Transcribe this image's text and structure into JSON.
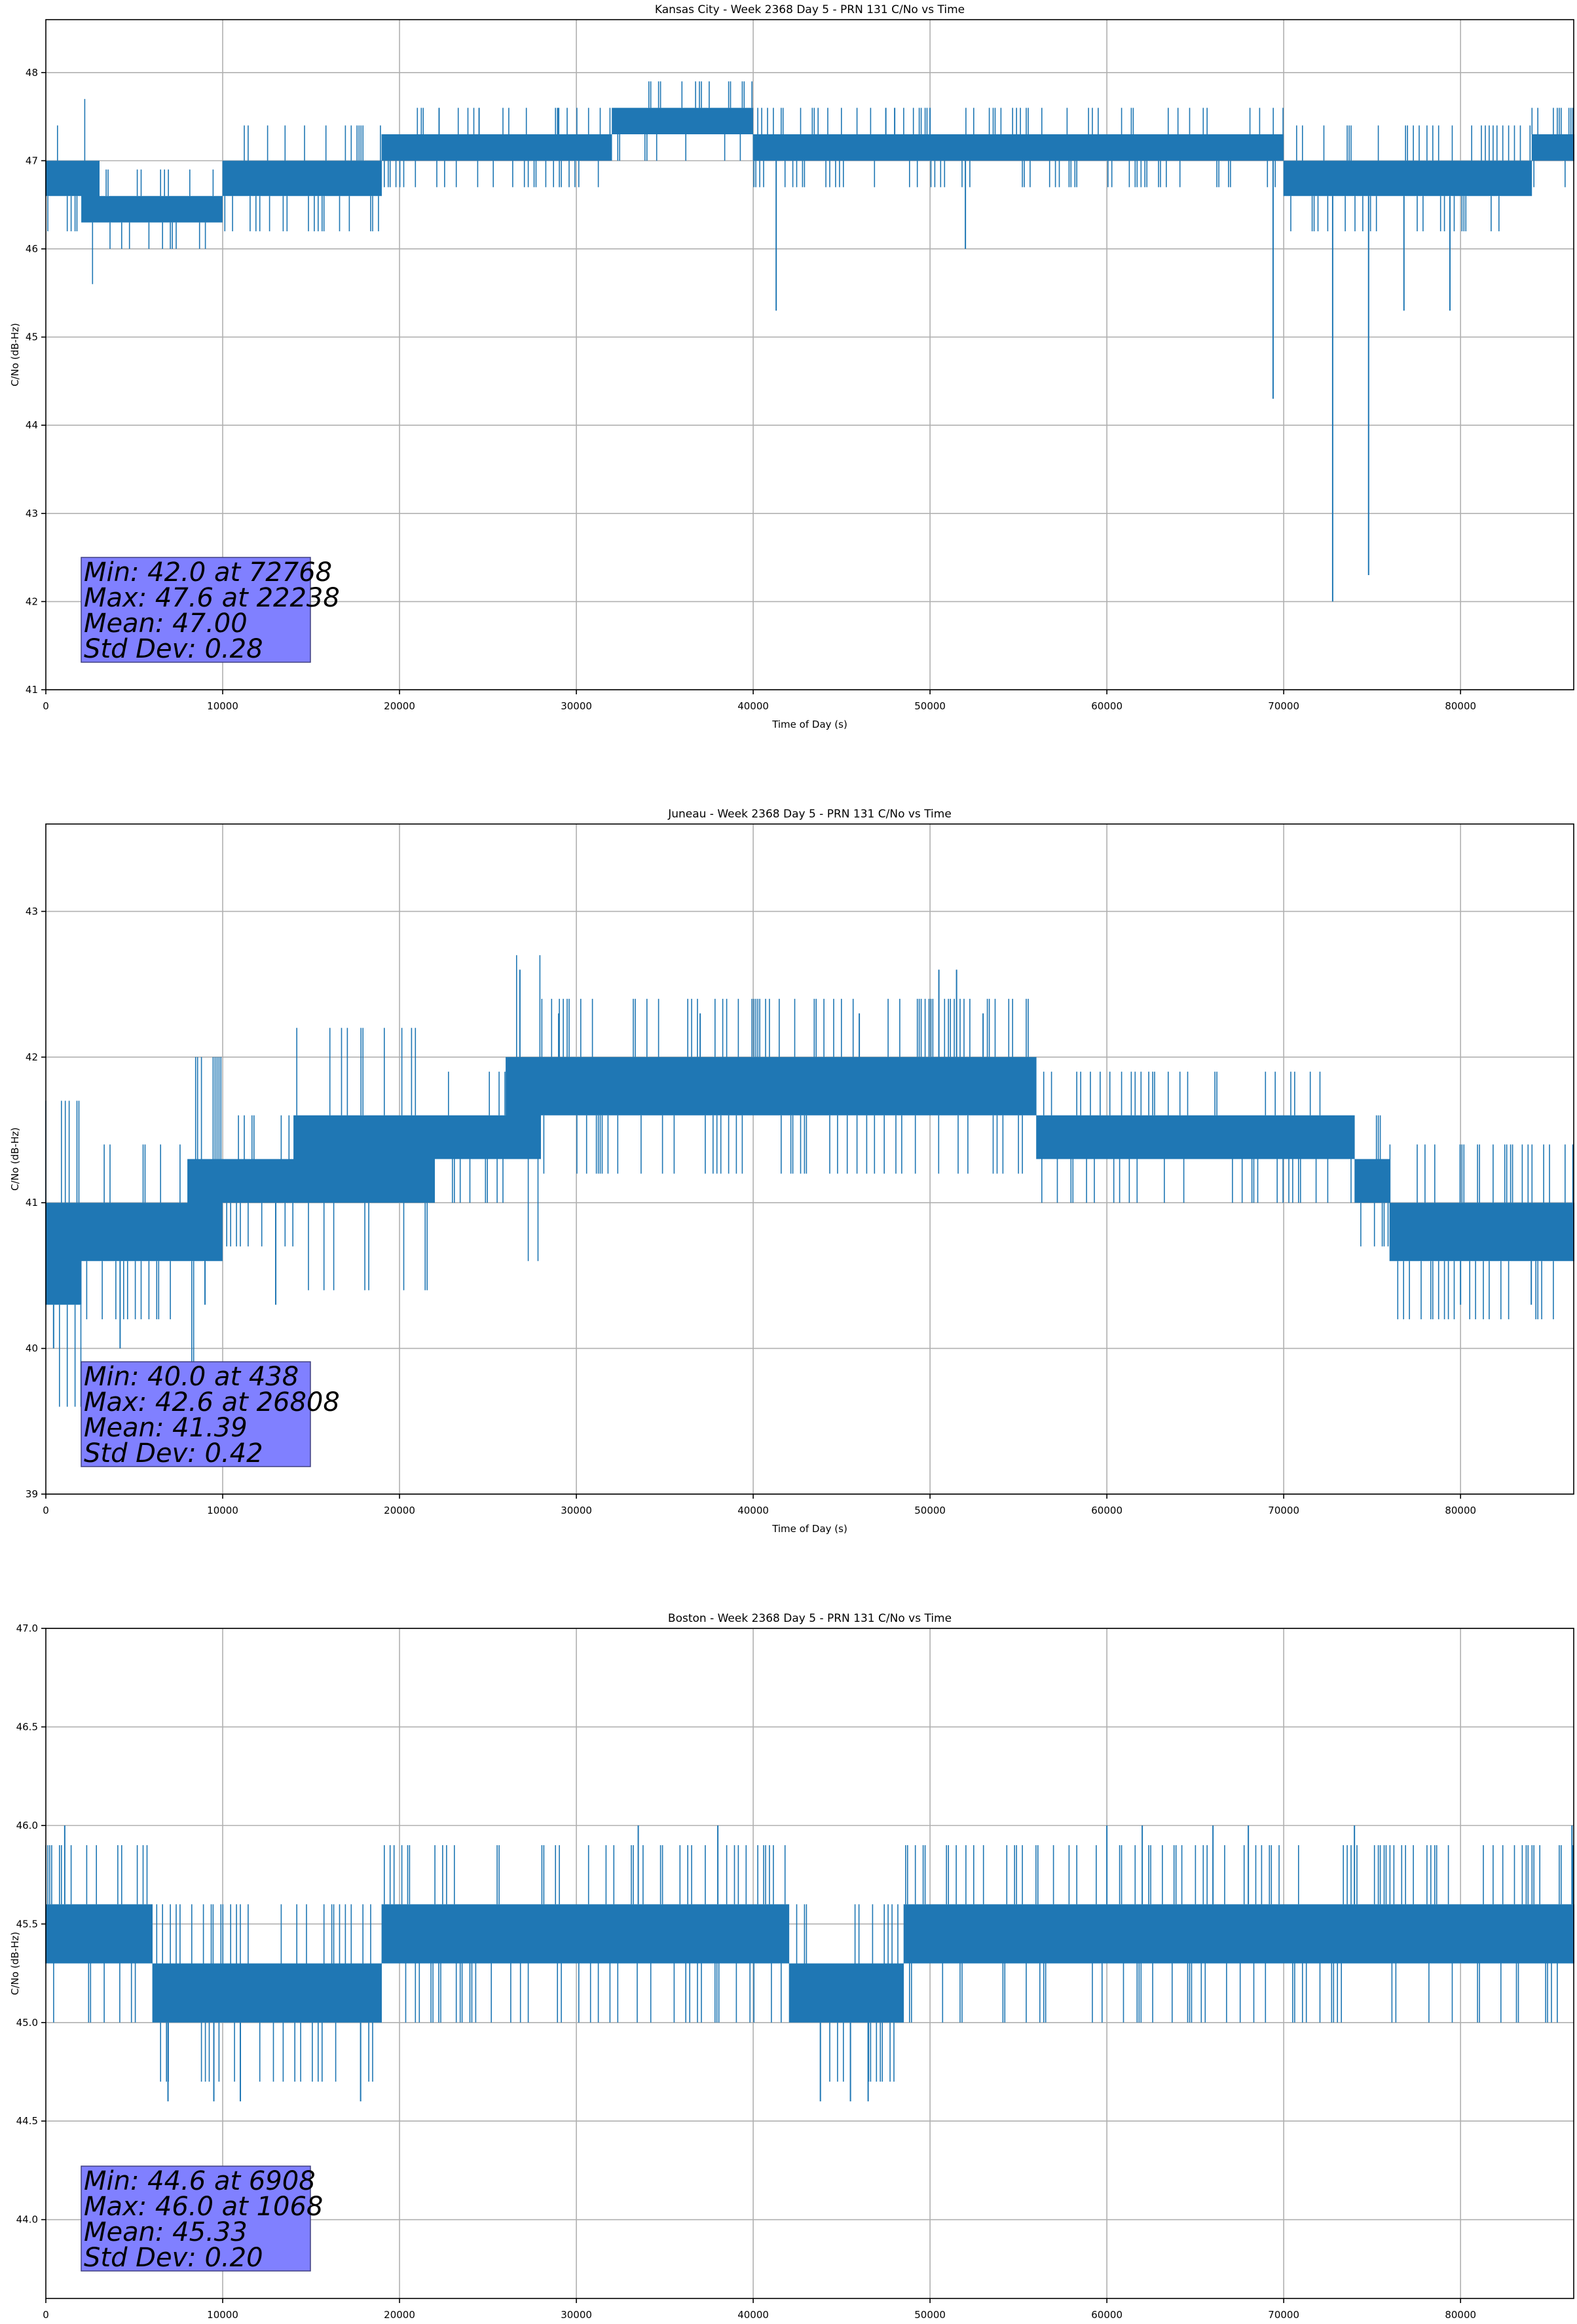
{
  "colors": {
    "series": "#1f77b4",
    "grid": "#b0b0b0",
    "stats_box": "#8080ff",
    "axes": "#000000"
  },
  "chart_data": [
    {
      "type": "line",
      "title": "Kansas City - Week 2368 Day 5 - PRN 131 C/No vs Time",
      "xlabel": "Time of Day (s)",
      "ylabel": "C/No (dB-Hz)",
      "xlim": [
        0,
        86400
      ],
      "ylim": [
        41,
        48.6
      ],
      "grid": true,
      "xticks": [
        0,
        10000,
        20000,
        30000,
        40000,
        50000,
        60000,
        70000,
        80000
      ],
      "xtick_labels": [
        "0",
        "10000",
        "20000",
        "30000",
        "40000",
        "50000",
        "60000",
        "70000",
        "80000"
      ],
      "yticks": [
        41,
        42,
        43,
        44,
        45,
        46,
        47,
        48
      ],
      "ytick_labels": [
        "41",
        "42",
        "43",
        "44",
        "45",
        "46",
        "47",
        "48"
      ],
      "series": [
        {
          "values_description": "1-second C/No samples",
          "segments": [
            {
              "x": [
                0,
                1000,
                2000,
                3000,
                4000,
                5000,
                6000,
                7000,
                8000,
                9500,
                10000,
                12000,
                14000,
                16000,
                18000,
                19000,
                20000,
                25000,
                30000,
                32000,
                36000,
                38000,
                40000,
                42000,
                44000,
                46000,
                48000,
                50000,
                52000,
                56000,
                60000,
                64000,
                68000,
                69000,
                70000,
                72000,
                76000,
                80000,
                84000,
                86400
              ],
              "low": [
                46.6,
                46.6,
                46.3,
                46.3,
                46.3,
                46.3,
                46.3,
                46.3,
                46.3,
                46.3,
                46.6,
                46.6,
                46.6,
                46.6,
                46.6,
                47.0,
                47.0,
                47.0,
                47.0,
                47.3,
                47.3,
                47.3,
                47.0,
                47.0,
                47.0,
                47.0,
                47.0,
                47.0,
                47.0,
                47.0,
                47.0,
                47.0,
                47.0,
                47.0,
                46.6,
                46.6,
                46.6,
                46.6,
                47.0,
                47.0
              ],
              "high": [
                47.0,
                47.0,
                47.0,
                46.6,
                46.6,
                46.6,
                46.6,
                46.6,
                46.6,
                46.6,
                47.0,
                47.0,
                47.0,
                47.0,
                47.0,
                47.3,
                47.3,
                47.3,
                47.3,
                47.6,
                47.6,
                47.6,
                47.3,
                47.3,
                47.3,
                47.3,
                47.3,
                47.3,
                47.3,
                47.3,
                47.3,
                47.3,
                47.3,
                47.3,
                47.0,
                47.0,
                47.0,
                47.0,
                47.3,
                47.3
              ]
            }
          ],
          "dips": [
            [
              41300,
              45.3
            ],
            [
              52000,
              46.0
            ],
            [
              69400,
              44.3
            ],
            [
              72768,
              42.0
            ],
            [
              74800,
              42.3
            ],
            [
              76800,
              45.3
            ],
            [
              79400,
              45.3
            ]
          ],
          "spikes": [
            [
              22238,
              47.6
            ],
            [
              24500,
              47.6
            ],
            [
              29000,
              47.6
            ],
            [
              47500,
              47.6
            ],
            [
              48000,
              47.6
            ],
            [
              50000,
              47.6
            ]
          ]
        }
      ],
      "stats": [
        "Min: 42.0 at 72768",
        "Max: 47.6 at 22238",
        "Mean: 47.00",
        "Std Dev: 0.28"
      ]
    },
    {
      "type": "line",
      "title": "Juneau - Week 2368 Day 5 - PRN 131 C/No vs Time",
      "xlabel": "Time of Day (s)",
      "ylabel": "C/No (dB-Hz)",
      "xlim": [
        0,
        86400
      ],
      "ylim": [
        39,
        43.6
      ],
      "grid": true,
      "xticks": [
        0,
        10000,
        20000,
        30000,
        40000,
        50000,
        60000,
        70000,
        80000
      ],
      "xtick_labels": [
        "0",
        "10000",
        "20000",
        "30000",
        "40000",
        "50000",
        "60000",
        "70000",
        "80000"
      ],
      "yticks": [
        39,
        40,
        41,
        42,
        43
      ],
      "ytick_labels": [
        "39",
        "40",
        "41",
        "42",
        "43"
      ],
      "series": [
        {
          "values_description": "1-second C/No samples",
          "segments": [
            {
              "x": [
                0,
                2000,
                4000,
                6000,
                8000,
                10000,
                12000,
                14000,
                16000,
                18000,
                20000,
                22000,
                24000,
                26000,
                28000,
                30000,
                34000,
                38000,
                42000,
                46000,
                50000,
                54000,
                56000,
                60000,
                64000,
                68000,
                72000,
                74000,
                76000,
                80000,
                84000,
                86400
              ],
              "low": [
                40.3,
                40.6,
                40.6,
                40.6,
                40.6,
                41.0,
                41.0,
                41.0,
                41.0,
                41.0,
                41.0,
                41.3,
                41.3,
                41.3,
                41.6,
                41.6,
                41.6,
                41.6,
                41.6,
                41.6,
                41.6,
                41.6,
                41.3,
                41.3,
                41.3,
                41.3,
                41.3,
                41.0,
                40.6,
                40.6,
                40.6,
                40.6
              ],
              "high": [
                41.0,
                41.0,
                41.0,
                41.0,
                41.3,
                41.3,
                41.3,
                41.6,
                41.6,
                41.6,
                41.6,
                41.6,
                41.6,
                42.0,
                42.0,
                42.0,
                42.0,
                42.0,
                42.0,
                42.0,
                42.0,
                42.0,
                41.6,
                41.6,
                41.6,
                41.6,
                41.6,
                41.3,
                41.0,
                41.0,
                41.0,
                41.0
              ]
            }
          ],
          "dips": [
            [
              438,
              40.0
            ],
            [
              4200,
              40.0
            ],
            [
              9000,
              40.3
            ],
            [
              13000,
              40.3
            ],
            [
              80000,
              40.3
            ],
            [
              84000,
              40.3
            ]
          ],
          "spikes": [
            [
              26808,
              42.6
            ],
            [
              50500,
              42.6
            ],
            [
              51500,
              42.6
            ],
            [
              29000,
              42.3
            ],
            [
              37000,
              42.3
            ],
            [
              46000,
              42.3
            ],
            [
              53000,
              42.3
            ]
          ]
        }
      ],
      "stats": [
        "Min: 40.0 at 438",
        "Max: 42.6 at 26808",
        "Mean: 41.39",
        "Std Dev: 0.42"
      ]
    },
    {
      "type": "line",
      "title": "Boston - Week 2368 Day 5 - PRN 131 C/No vs Time",
      "xlabel": "Time of Day (s)",
      "ylabel": "C/No (dB-Hz)",
      "xlim": [
        0,
        86400
      ],
      "ylim": [
        43.6,
        47.0
      ],
      "grid": true,
      "xticks": [
        0,
        10000,
        20000,
        30000,
        40000,
        50000,
        60000,
        70000,
        80000
      ],
      "xtick_labels": [
        "0",
        "10000",
        "20000",
        "30000",
        "40000",
        "50000",
        "60000",
        "70000",
        "80000"
      ],
      "yticks": [
        44.0,
        44.5,
        45.0,
        45.5,
        46.0,
        46.5,
        47.0
      ],
      "ytick_labels": [
        "44.0",
        "44.5",
        "45.0",
        "45.5",
        "46.0",
        "46.5",
        "47.0"
      ],
      "series": [
        {
          "values_description": "1-second C/No samples",
          "segments": [
            {
              "x": [
                0,
                2000,
                4000,
                5500,
                6000,
                8000,
                10000,
                12000,
                14000,
                16000,
                18000,
                19000,
                22000,
                26000,
                30000,
                34000,
                38000,
                40000,
                42000,
                44000,
                46000,
                48000,
                48500,
                52000,
                56000,
                60000,
                64000,
                68000,
                72000,
                76000,
                80000,
                84000,
                86400
              ],
              "low": [
                45.3,
                45.3,
                45.3,
                45.3,
                45.0,
                45.0,
                45.0,
                45.0,
                45.0,
                45.0,
                45.0,
                45.3,
                45.3,
                45.3,
                45.3,
                45.3,
                45.3,
                45.3,
                45.0,
                45.0,
                45.0,
                45.0,
                45.3,
                45.3,
                45.3,
                45.3,
                45.3,
                45.3,
                45.3,
                45.3,
                45.3,
                45.3,
                45.3
              ],
              "high": [
                45.6,
                45.6,
                45.6,
                45.6,
                45.3,
                45.3,
                45.3,
                45.3,
                45.3,
                45.3,
                45.3,
                45.6,
                45.6,
                45.6,
                45.6,
                45.6,
                45.6,
                45.6,
                45.3,
                45.3,
                45.3,
                45.3,
                45.6,
                45.6,
                45.6,
                45.6,
                45.6,
                45.6,
                45.6,
                45.6,
                45.6,
                45.6,
                45.6
              ]
            }
          ],
          "dips": [
            [
              6908,
              44.6
            ],
            [
              9500,
              44.6
            ],
            [
              11000,
              44.6
            ],
            [
              17800,
              44.6
            ],
            [
              43800,
              44.6
            ],
            [
              45500,
              44.6
            ],
            [
              46500,
              44.6
            ]
          ],
          "spikes": [
            [
              1068,
              46.0
            ],
            [
              33500,
              46.0
            ],
            [
              38000,
              46.0
            ],
            [
              60000,
              46.0
            ],
            [
              62000,
              46.0
            ],
            [
              66000,
              46.0
            ],
            [
              68000,
              46.0
            ],
            [
              74000,
              46.0
            ],
            [
              86300,
              46.0
            ]
          ]
        }
      ],
      "stats": [
        "Min: 44.6 at 6908",
        "Max: 46.0 at 1068",
        "Mean: 45.33",
        "Std Dev: 0.20"
      ]
    }
  ]
}
